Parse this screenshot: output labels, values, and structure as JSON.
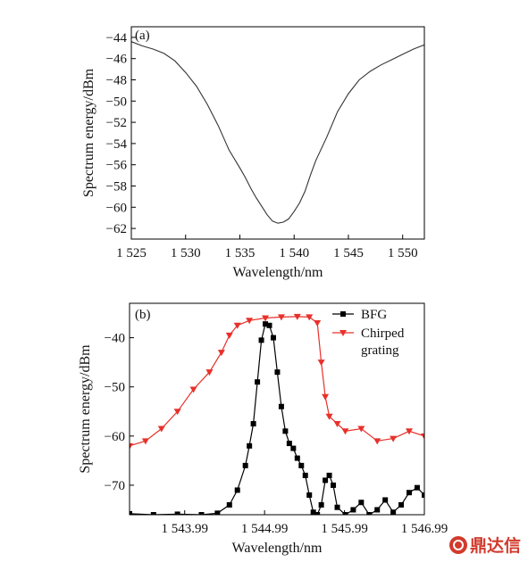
{
  "chart_data": [
    {
      "id": "a",
      "type": "line",
      "panel_label": "(a)",
      "xlabel": "Wavelength/nm",
      "ylabel": "Spectrum energy/dBm",
      "xlim": [
        1525,
        1552
      ],
      "ylim": [
        -63,
        -43
      ],
      "xticks": [
        1525,
        1530,
        1535,
        1540,
        1545,
        1550
      ],
      "xtick_labels": [
        "1 525",
        "1 530",
        "1 535",
        "1 540",
        "1 545",
        "1 550"
      ],
      "yticks": [
        -44,
        -46,
        -48,
        -50,
        -52,
        -54,
        -56,
        -58,
        -60,
        -62
      ],
      "ytick_labels": [
        "−44",
        "−46",
        "−48",
        "−50",
        "−52",
        "−54",
        "−56",
        "−58",
        "−60",
        "−62"
      ],
      "grid": false,
      "series": [
        {
          "color": "#333333",
          "x": [
            1525,
            1526,
            1527,
            1528,
            1529,
            1530,
            1531,
            1532,
            1533,
            1534,
            1535,
            1535.5,
            1536,
            1536.5,
            1537,
            1537.5,
            1538,
            1538.5,
            1539,
            1539.5,
            1540,
            1540.5,
            1541,
            1541.5,
            1542,
            1543,
            1544,
            1545,
            1546,
            1547,
            1548,
            1549,
            1550,
            1551,
            1552
          ],
          "y": [
            -44.4,
            -44.8,
            -45.1,
            -45.5,
            -46.2,
            -47.3,
            -48.6,
            -50.3,
            -52.3,
            -54.6,
            -56.3,
            -57.2,
            -58.2,
            -59.1,
            -59.9,
            -60.7,
            -61.3,
            -61.5,
            -61.4,
            -61.1,
            -60.4,
            -59.6,
            -58.5,
            -57.0,
            -55.6,
            -53.4,
            -51.0,
            -49.3,
            -48.0,
            -47.2,
            -46.6,
            -46.1,
            -45.6,
            -45.1,
            -44.7
          ]
        }
      ]
    },
    {
      "id": "b",
      "type": "scatter",
      "panel_label": "(b)",
      "xlabel": "Wavelength/nm",
      "ylabel": "Spectrum energy/dBm",
      "xlim": [
        1543.3,
        1546.99
      ],
      "ylim": [
        -76,
        -33
      ],
      "xticks": [
        1543.99,
        1544.99,
        1545.99,
        1546.99
      ],
      "xtick_labels": [
        "1 543.99",
        "1 544.99",
        "1 545.99",
        "1 546.99"
      ],
      "yticks": [
        -40,
        -50,
        -60,
        -70
      ],
      "ytick_labels": [
        "−40",
        "−50",
        "−60",
        "−70"
      ],
      "grid": false,
      "legend_position": "top-right",
      "series": [
        {
          "name": "BFG",
          "color": "#000000",
          "marker": "square",
          "x": [
            1543.3,
            1543.6,
            1543.9,
            1544.2,
            1544.4,
            1544.55,
            1544.65,
            1544.75,
            1544.8,
            1544.85,
            1544.9,
            1544.95,
            1545.0,
            1545.05,
            1545.1,
            1545.15,
            1545.2,
            1545.25,
            1545.3,
            1545.35,
            1545.4,
            1545.45,
            1545.5,
            1545.55,
            1545.6,
            1545.65,
            1545.7,
            1545.75,
            1545.8,
            1545.85,
            1545.9,
            1546.0,
            1546.1,
            1546.2,
            1546.3,
            1546.4,
            1546.5,
            1546.6,
            1546.7,
            1546.8,
            1546.9,
            1546.99
          ],
          "y": [
            -75.8,
            -76.0,
            -75.9,
            -76.0,
            -75.7,
            -74.0,
            -71.0,
            -66.0,
            -62.0,
            -57.5,
            -49.0,
            -40.5,
            -37.2,
            -37.5,
            -40.0,
            -47.0,
            -54.0,
            -59.0,
            -61.5,
            -62.5,
            -64.5,
            -66.0,
            -68.0,
            -72.0,
            -75.5,
            -76.0,
            -74.0,
            -69.0,
            -68.0,
            -70.0,
            -74.5,
            -76.0,
            -75.0,
            -73.5,
            -76.0,
            -75.0,
            -73.0,
            -75.5,
            -74.0,
            -71.5,
            -70.5,
            -72.0
          ]
        },
        {
          "name": "Chirped grating",
          "color": "#e8302a",
          "marker": "triangle-down",
          "x": [
            1543.3,
            1543.5,
            1543.7,
            1543.9,
            1544.1,
            1544.3,
            1544.45,
            1544.55,
            1544.65,
            1544.8,
            1545.0,
            1545.2,
            1545.4,
            1545.55,
            1545.65,
            1545.7,
            1545.75,
            1545.8,
            1545.9,
            1546.0,
            1546.2,
            1546.4,
            1546.6,
            1546.8,
            1546.99
          ],
          "y": [
            -62.0,
            -61.0,
            -58.5,
            -55.0,
            -50.5,
            -47.0,
            -43.0,
            -39.5,
            -37.5,
            -36.5,
            -36.0,
            -35.8,
            -35.7,
            -35.8,
            -37.0,
            -45.0,
            -52.0,
            -56.0,
            -57.5,
            -59.0,
            -58.5,
            -61.0,
            -60.5,
            -59.0,
            -60.0
          ]
        }
      ]
    }
  ],
  "watermark": {
    "text": "鼎达信",
    "icon": "logo-icon"
  }
}
